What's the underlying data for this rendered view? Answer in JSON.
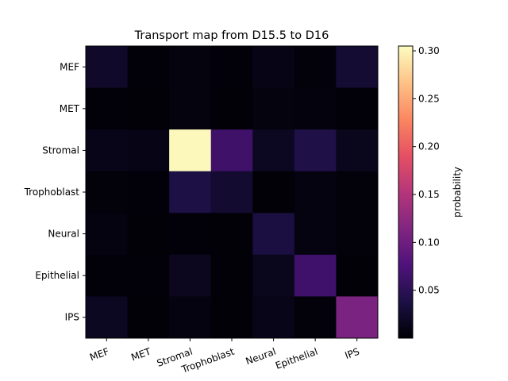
{
  "chart_data": {
    "type": "heatmap",
    "title": "Transport map from D15.5 to D16",
    "x_categories": [
      "MEF",
      "MET",
      "Stromal",
      "Trophoblast",
      "Neural",
      "Epithelial",
      "IPS"
    ],
    "y_categories": [
      "MEF",
      "MET",
      "Stromal",
      "Trophoblast",
      "Neural",
      "Epithelial",
      "IPS"
    ],
    "values": [
      [
        0.022,
        0.003,
        0.006,
        0.003,
        0.01,
        0.004,
        0.028
      ],
      [
        0.003,
        0.002,
        0.006,
        0.002,
        0.006,
        0.005,
        0.003
      ],
      [
        0.012,
        0.01,
        0.302,
        0.064,
        0.018,
        0.04,
        0.014
      ],
      [
        0.004,
        0.003,
        0.038,
        0.026,
        0.002,
        0.007,
        0.004
      ],
      [
        0.008,
        0.002,
        0.003,
        0.002,
        0.036,
        0.008,
        0.004
      ],
      [
        0.003,
        0.003,
        0.016,
        0.002,
        0.014,
        0.065,
        0.002
      ],
      [
        0.018,
        0.002,
        0.007,
        0.002,
        0.012,
        0.004,
        0.11
      ]
    ],
    "colormap": "magma",
    "colorbar": {
      "label": "probability",
      "min": 0.0,
      "max": 0.305,
      "ticks": [
        0.05,
        0.1,
        0.15,
        0.2,
        0.25,
        0.3
      ],
      "tick_labels": [
        "0.05",
        "0.10",
        "0.15",
        "0.20",
        "0.25",
        "0.30"
      ]
    }
  }
}
